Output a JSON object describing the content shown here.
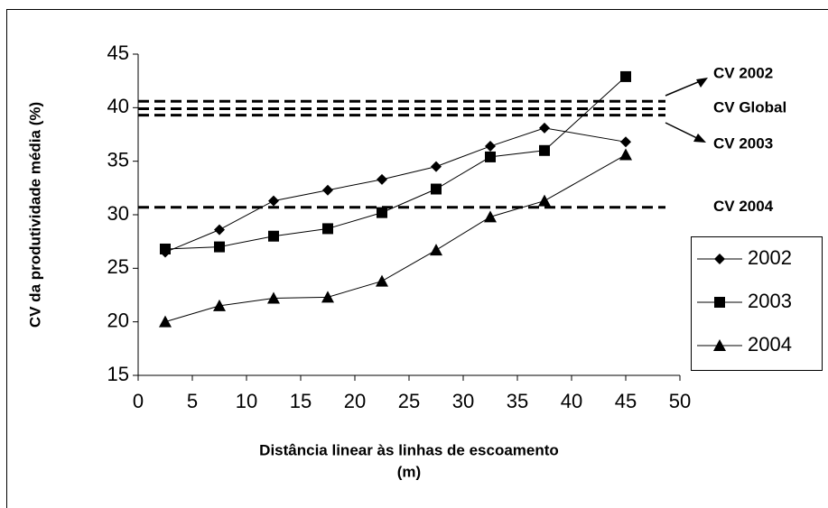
{
  "chart_data": {
    "type": "line",
    "ylabel": "CV da produtividade média (%)",
    "xlabel": [
      "Distância linear às linhas de escoamento",
      "(m)"
    ],
    "x": [
      2.5,
      7.5,
      12.5,
      17.5,
      22.5,
      27.5,
      32.5,
      37.5,
      45
    ],
    "series": [
      {
        "name": "2002",
        "color": "#000000",
        "marker": "diamond",
        "values": [
          26.5,
          28.6,
          31.3,
          32.3,
          33.3,
          34.5,
          36.4,
          38.1,
          36.8
        ]
      },
      {
        "name": "2003",
        "color": "#000000",
        "marker": "square",
        "values": [
          26.8,
          27.0,
          28.0,
          28.7,
          30.2,
          32.4,
          35.4,
          36.0,
          42.9
        ]
      },
      {
        "name": "2004",
        "color": "#000000",
        "marker": "triangle",
        "values": [
          20.0,
          21.5,
          22.2,
          22.3,
          23.8,
          26.7,
          29.8,
          31.3,
          35.6
        ]
      }
    ],
    "reference_lines": [
      {
        "label": "CV 2002",
        "value": 40.6
      },
      {
        "label": "CV Global",
        "value": 39.9
      },
      {
        "label": "CV 2003",
        "value": 39.3
      },
      {
        "label": "CV 2004",
        "value": 30.7
      }
    ],
    "xlim": [
      0,
      50
    ],
    "xticks": [
      0,
      5,
      10,
      15,
      20,
      25,
      30,
      35,
      40,
      45,
      50
    ],
    "ylim": [
      15,
      45
    ],
    "yticks": [
      15,
      20,
      25,
      30,
      35,
      40,
      45
    ],
    "grid": false,
    "legend": "right"
  }
}
